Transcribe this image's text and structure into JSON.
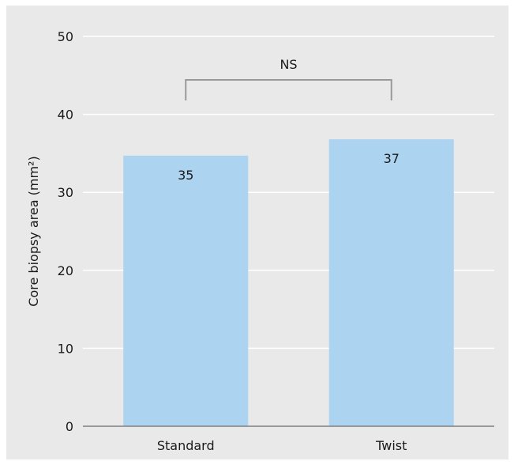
{
  "chart_data": {
    "type": "bar",
    "categories": [
      "Standard",
      "Twist"
    ],
    "values": [
      34.7,
      36.8
    ],
    "data_labels": [
      "35",
      "37"
    ],
    "ylabel": "Core biopsy area (mm²)",
    "xlabel": "",
    "ylim": [
      0,
      50
    ],
    "yticks": [
      0,
      10,
      20,
      30,
      40,
      50
    ],
    "grid": true,
    "bar_color": "#acd3ef",
    "background_color": "#e8e9e8",
    "annotation": {
      "text": "NS",
      "between": [
        "Standard",
        "Twist"
      ],
      "bracket_color": "#999999"
    }
  }
}
